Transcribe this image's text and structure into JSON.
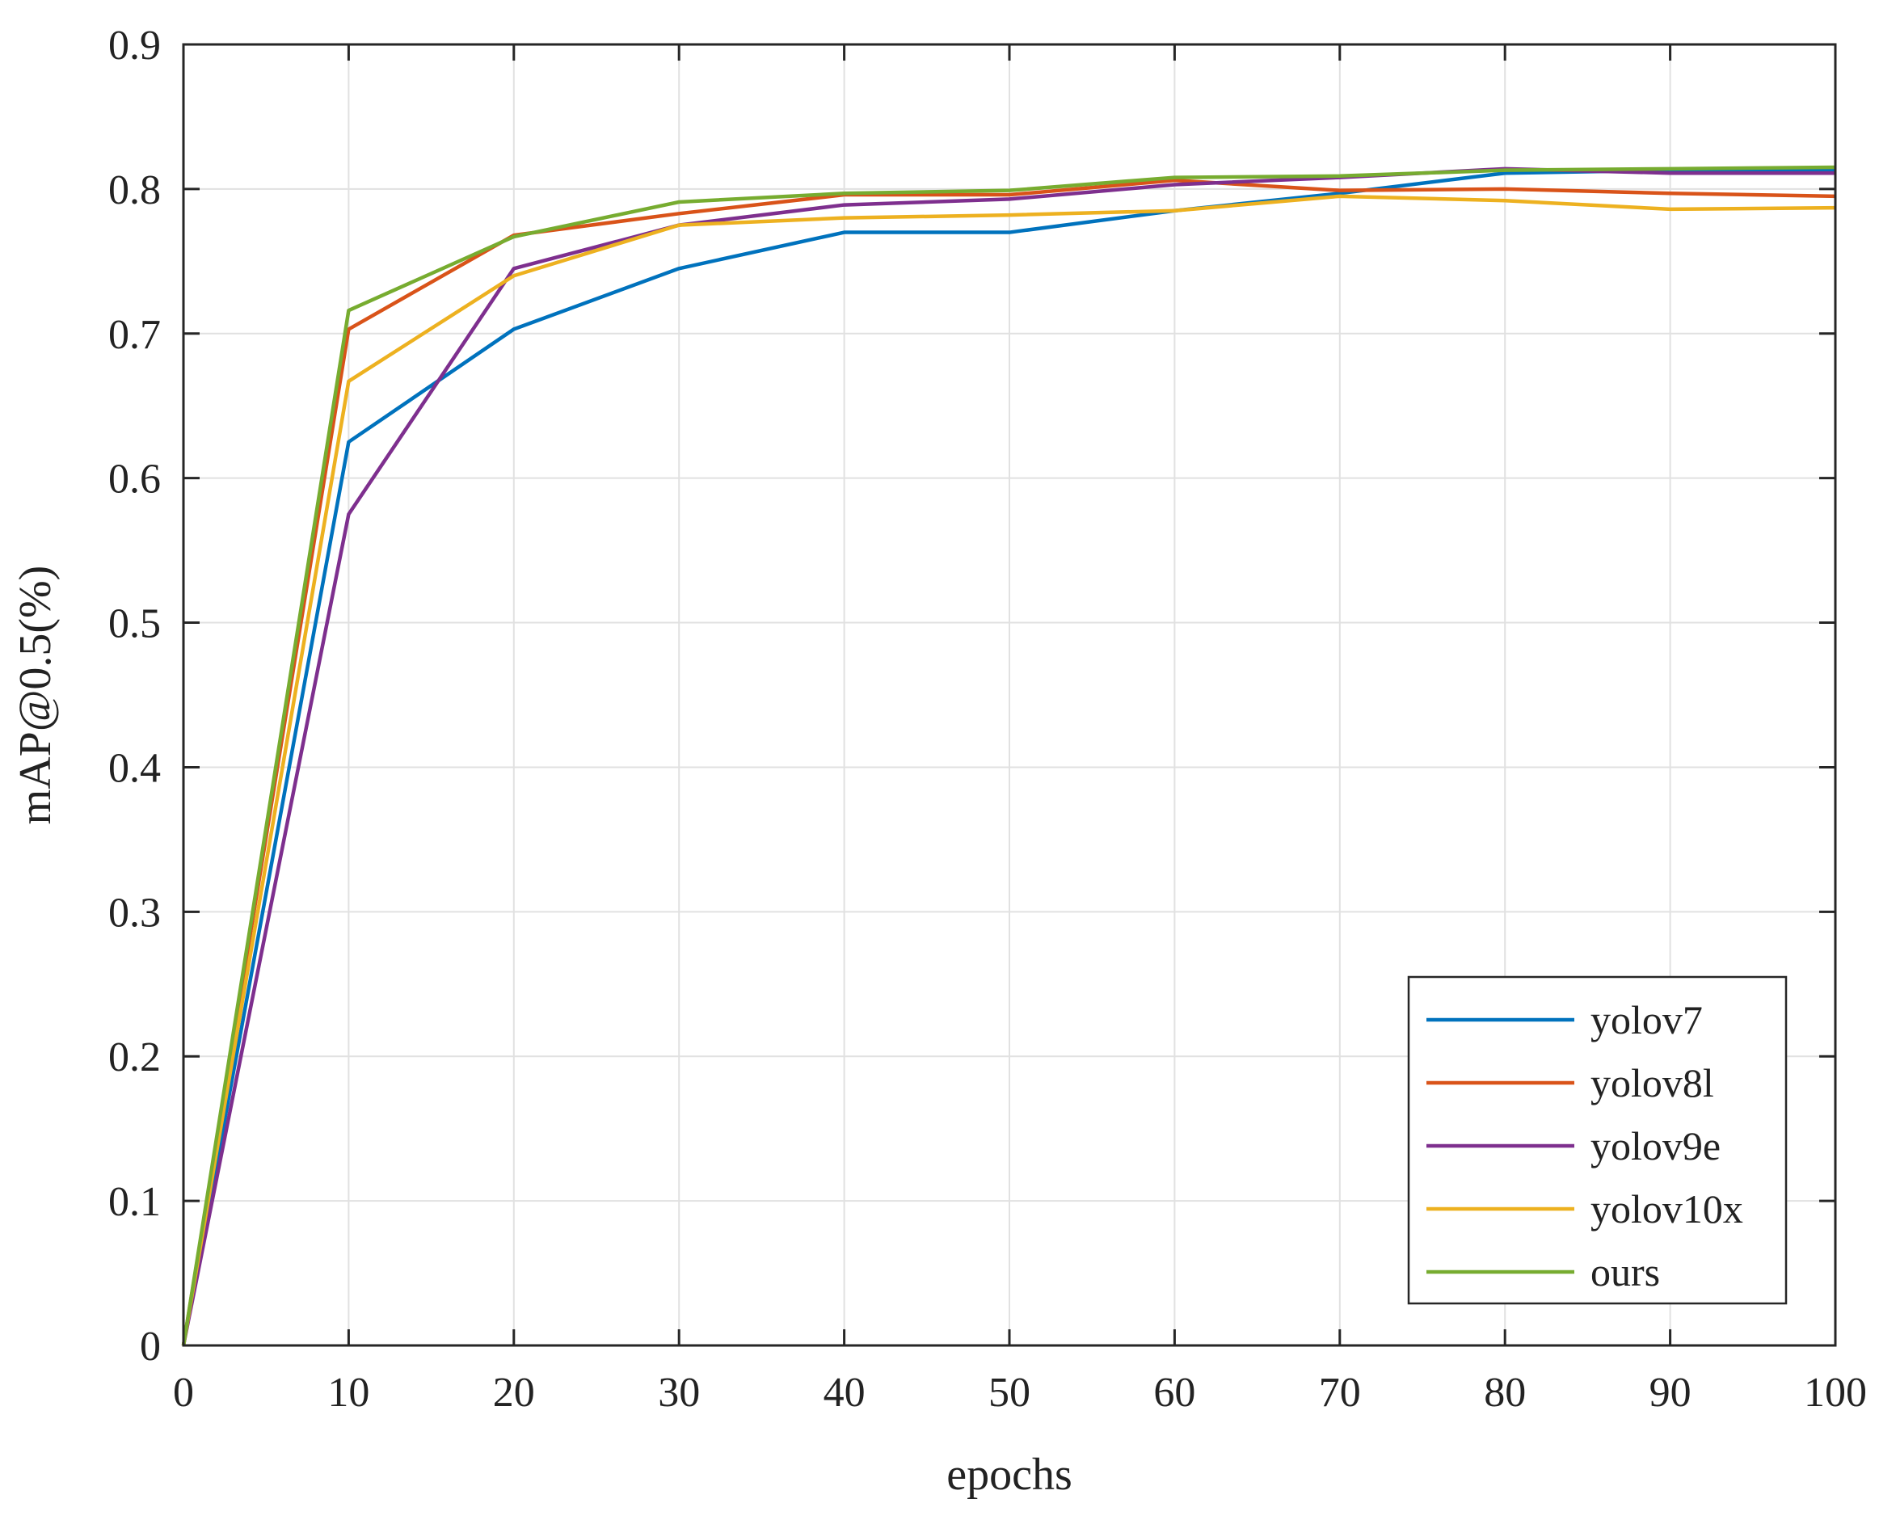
{
  "chart_data": {
    "type": "line",
    "title": "",
    "xlabel": "epochs",
    "ylabel": "mAP@0.5(%)",
    "xlim": [
      0,
      100
    ],
    "ylim": [
      0,
      0.9
    ],
    "xticks": [
      0,
      10,
      20,
      30,
      40,
      50,
      60,
      70,
      80,
      90,
      100
    ],
    "yticks": [
      0,
      0.1,
      0.2,
      0.3,
      0.4,
      0.5,
      0.6,
      0.7,
      0.8,
      0.9
    ],
    "xtick_labels": [
      "0",
      "10",
      "20",
      "30",
      "40",
      "50",
      "60",
      "70",
      "80",
      "90",
      "100"
    ],
    "ytick_labels": [
      "0",
      "0.1",
      "0.2",
      "0.3",
      "0.4",
      "0.5",
      "0.6",
      "0.7",
      "0.8",
      "0.9"
    ],
    "grid": true,
    "legend_position": "bottom-right",
    "x": [
      0,
      10,
      20,
      30,
      40,
      50,
      60,
      70,
      80,
      90,
      100
    ],
    "series": [
      {
        "name": "yolov7",
        "color": "#0072BD",
        "values": [
          0.0,
          0.625,
          0.703,
          0.745,
          0.77,
          0.77,
          0.785,
          0.797,
          0.811,
          0.813,
          0.813
        ]
      },
      {
        "name": "yolov8l",
        "color": "#D95319",
        "values": [
          0.0,
          0.703,
          0.768,
          0.783,
          0.796,
          0.796,
          0.806,
          0.799,
          0.8,
          0.797,
          0.795
        ]
      },
      {
        "name": "yolov9e",
        "color": "#7E2F8E",
        "values": [
          0.0,
          0.575,
          0.745,
          0.775,
          0.789,
          0.793,
          0.803,
          0.808,
          0.814,
          0.811,
          0.811
        ]
      },
      {
        "name": "yolov10x",
        "color": "#EDB120",
        "values": [
          0.0,
          0.667,
          0.74,
          0.775,
          0.78,
          0.782,
          0.785,
          0.795,
          0.792,
          0.786,
          0.787
        ]
      },
      {
        "name": "ours",
        "color": "#77AC30",
        "values": [
          0.0,
          0.716,
          0.767,
          0.791,
          0.797,
          0.799,
          0.808,
          0.809,
          0.813,
          0.814,
          0.815
        ]
      }
    ]
  }
}
